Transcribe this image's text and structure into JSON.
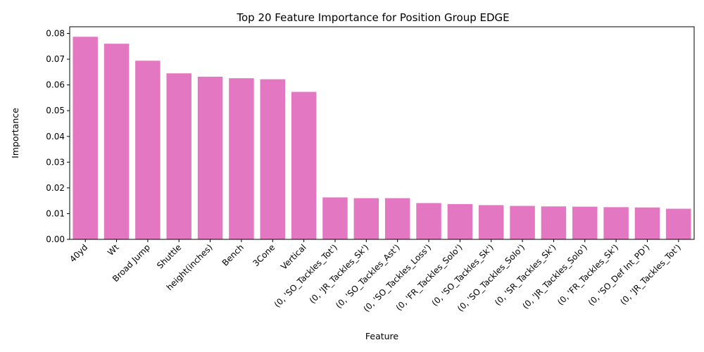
{
  "chart_data": {
    "type": "bar",
    "title": "Top 20 Feature Importance for Position Group EDGE",
    "xlabel": "Feature",
    "ylabel": "Importance",
    "ylim": [
      0,
      0.0826
    ],
    "yticks": [
      "0.00",
      "0.01",
      "0.02",
      "0.03",
      "0.04",
      "0.05",
      "0.06",
      "0.07",
      "0.08"
    ],
    "categories": [
      "40yd",
      "Wt",
      "Broad Jump",
      "Shuttle",
      "height(inches)",
      "Bench",
      "3Cone",
      "Vertical",
      "(0, 'SO_Tackles_Tot')",
      "(0, 'JR_Tackles_Sk')",
      "(0, 'SO_Tackles_Ast')",
      "(0, 'SO_Tackles_Loss')",
      "(0, 'FR_Tackles_Solo')",
      "(0, 'SO_Tackles_Sk')",
      "(0, 'SO_Tackles_Solo')",
      "(0, 'SR_Tackles_Sk')",
      "(0, 'JR_Tackles_Solo')",
      "(0, 'FR_Tackles_Sk')",
      "(0, 'SO_Def Int_PD')",
      "(0, 'JR_Tackles_Tot')"
    ],
    "values": [
      0.0787,
      0.076,
      0.0694,
      0.0645,
      0.0632,
      0.0626,
      0.0622,
      0.0573,
      0.0163,
      0.016,
      0.016,
      0.0141,
      0.0137,
      0.0133,
      0.013,
      0.0128,
      0.0127,
      0.0125,
      0.0124,
      0.0119
    ],
    "bar_color": "#e377c2",
    "grid": false,
    "legend": "none"
  }
}
